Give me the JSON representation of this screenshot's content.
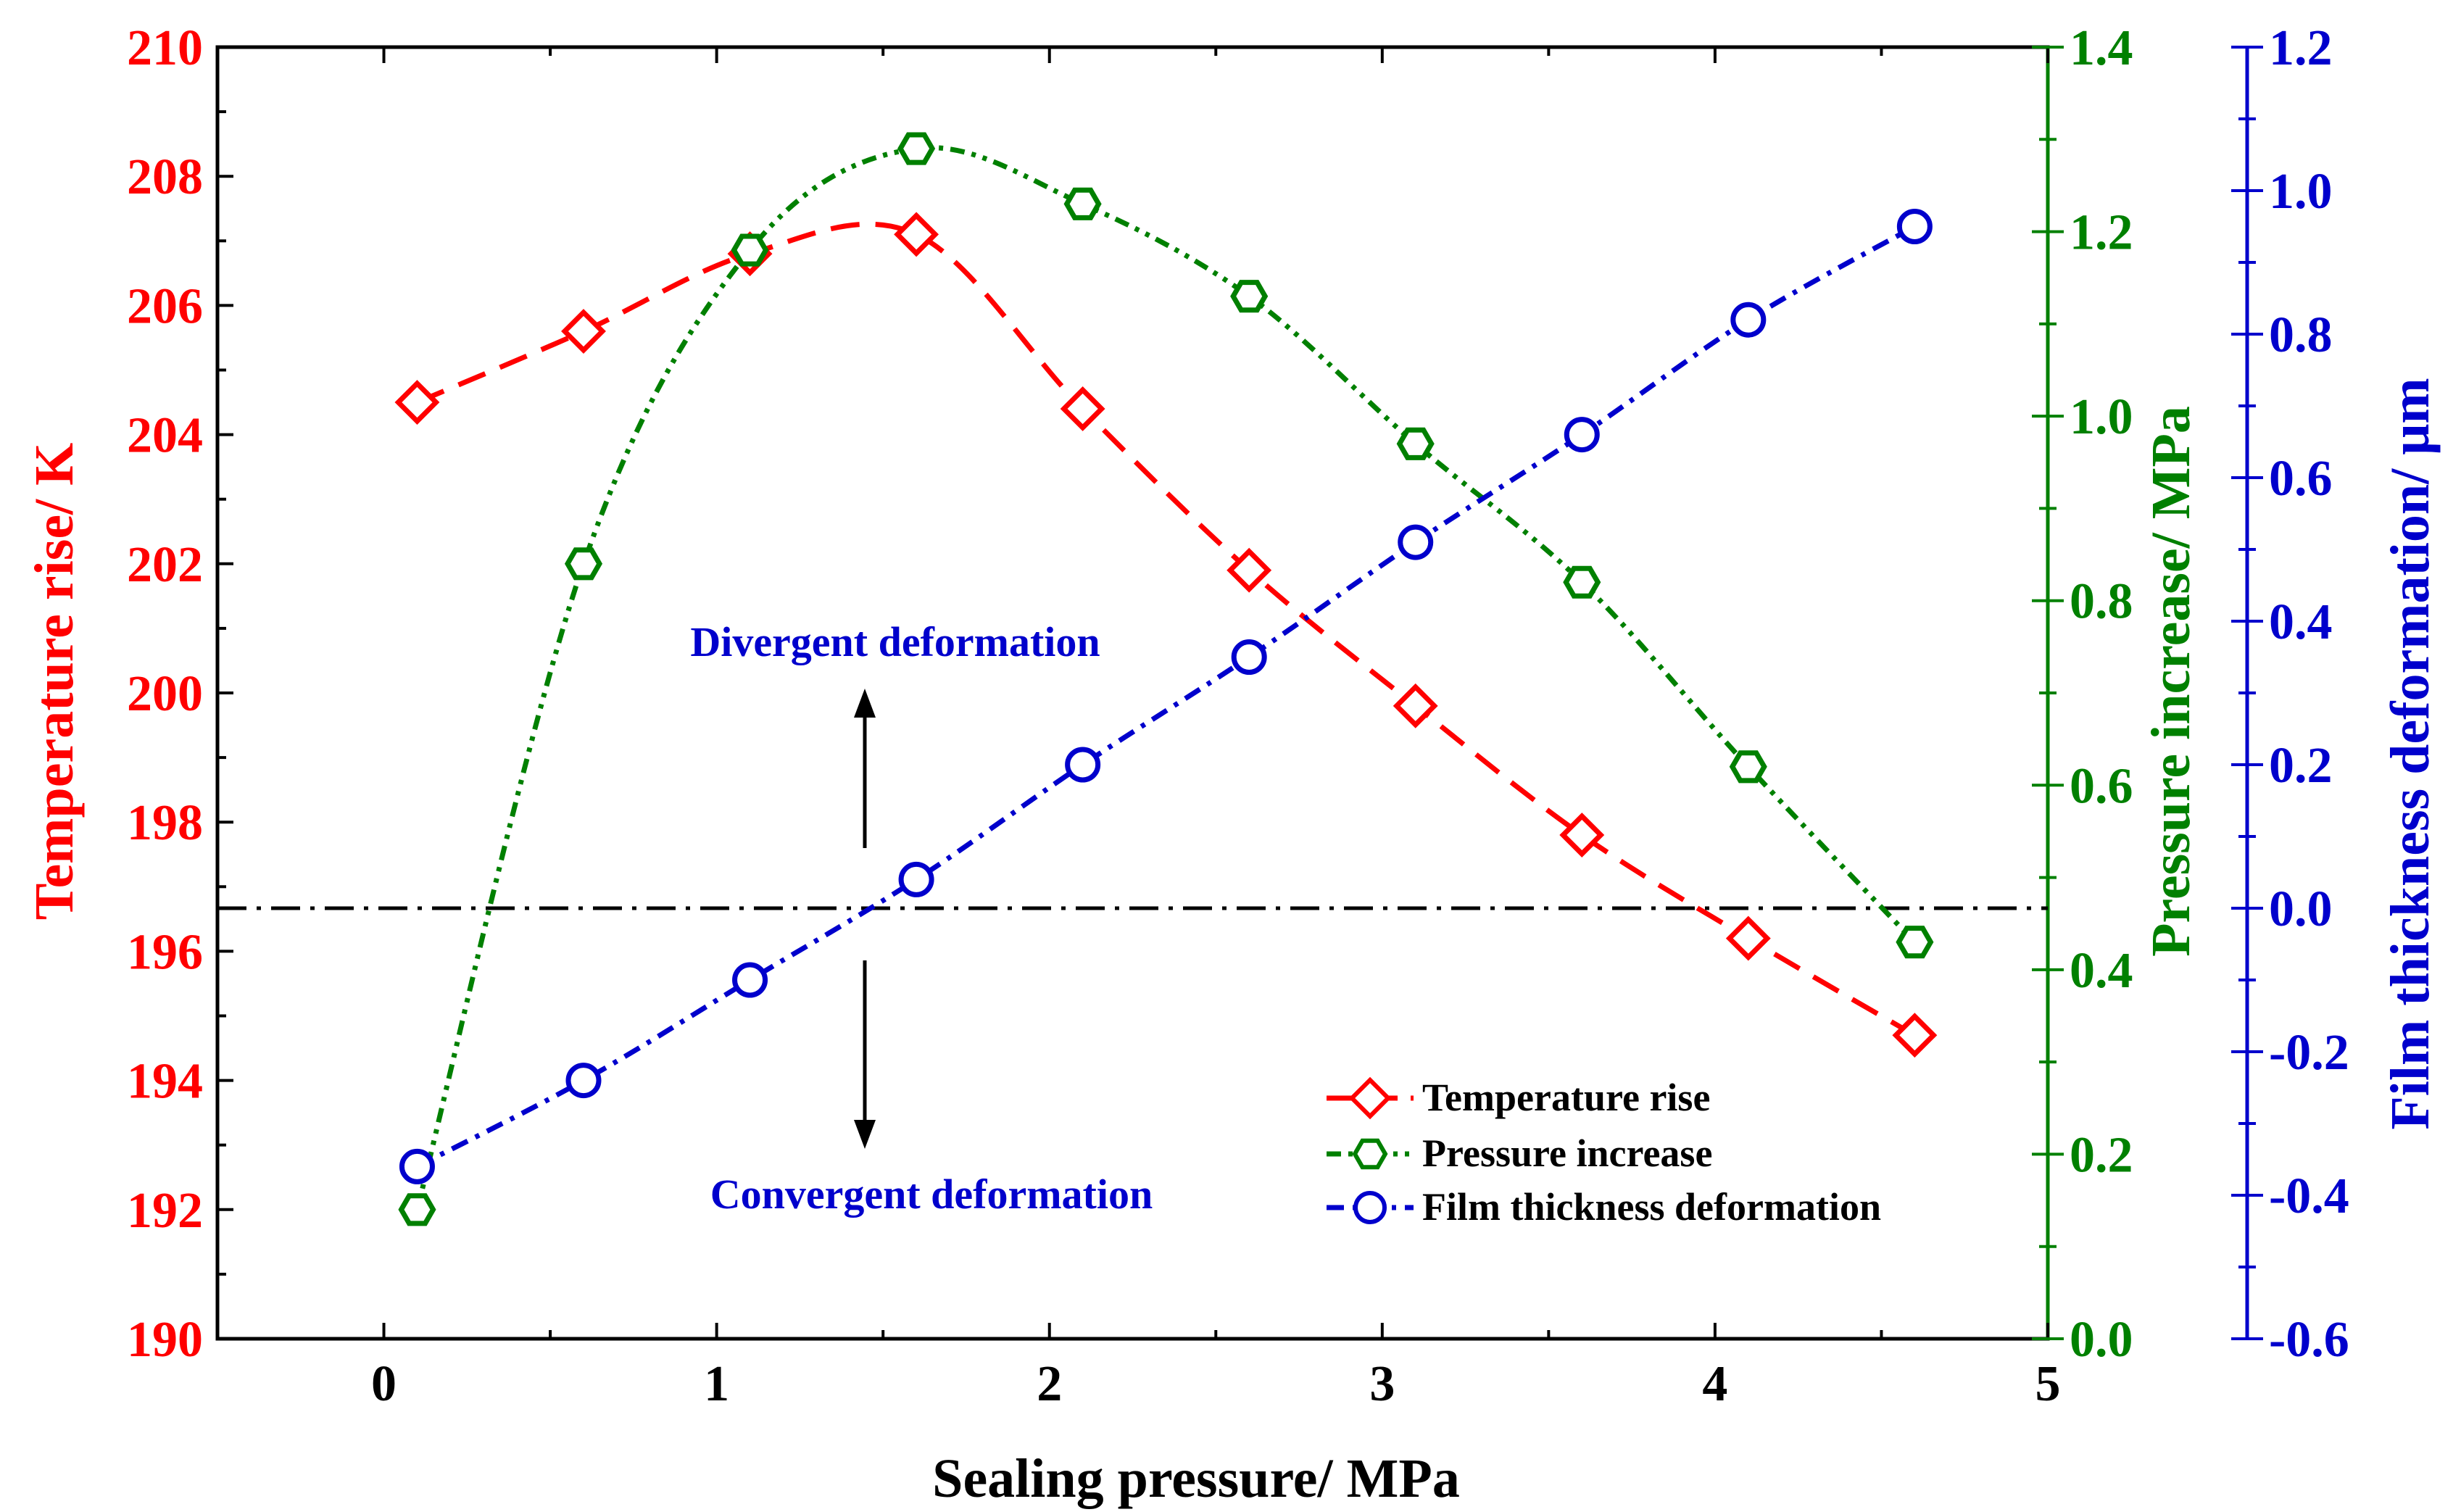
{
  "chart_data": {
    "type": "line",
    "x": [
      0.1,
      0.6,
      1.1,
      1.6,
      2.1,
      2.6,
      3.1,
      3.6,
      4.1,
      4.6
    ],
    "xlabel": "Sealing pressure/ MPa",
    "xlim": [
      -0.5,
      5
    ],
    "xticks": [
      "0",
      "1",
      "2",
      "3",
      "4",
      "5"
    ],
    "axes": {
      "left": {
        "label": "Temperature rise/ K",
        "ylim": [
          190,
          210
        ],
        "ticks": [
          "190",
          "192",
          "194",
          "196",
          "198",
          "200",
          "202",
          "204",
          "206",
          "208",
          "210"
        ],
        "color": "#ff0000"
      },
      "right1": {
        "label": "Pressure increase/ MPa",
        "ylim": [
          0.0,
          1.4
        ],
        "ticks": [
          "0.0",
          "0.2",
          "0.4",
          "0.6",
          "0.8",
          "1.0",
          "1.2",
          "1.4"
        ],
        "color": "#008000"
      },
      "right2": {
        "label": "Film thickness deformation/ μm",
        "ylim": [
          -0.6,
          1.2
        ],
        "ticks": [
          "-0.6",
          "-0.4",
          "-0.2",
          "0.0",
          "0.2",
          "0.4",
          "0.6",
          "0.8",
          "1.0",
          "1.2"
        ],
        "color": "#0000cc"
      }
    },
    "series": [
      {
        "name": "Temperature rise",
        "axis": "left",
        "marker": "diamond",
        "color": "#ff0000",
        "values": [
          204.5,
          205.6,
          206.8,
          207.1,
          204.4,
          201.9,
          199.8,
          197.8,
          196.2,
          194.7
        ]
      },
      {
        "name": "Pressure increase",
        "axis": "right1",
        "marker": "hexagon",
        "color": "#008000",
        "values": [
          0.14,
          0.84,
          1.18,
          1.29,
          1.23,
          1.13,
          0.97,
          0.82,
          0.62,
          0.43
        ]
      },
      {
        "name": "Film thickness deformation",
        "axis": "right2",
        "marker": "circle",
        "color": "#0000cc",
        "values": [
          -0.36,
          -0.24,
          -0.1,
          0.04,
          0.2,
          0.35,
          0.51,
          0.66,
          0.82,
          0.95
        ]
      }
    ],
    "reference_line": {
      "axis": "right2",
      "value": 0.0
    },
    "annotations": {
      "divergent": "Divergent deformation",
      "convergent": "Convergent deformation"
    },
    "legend_position": "bottom-right"
  }
}
